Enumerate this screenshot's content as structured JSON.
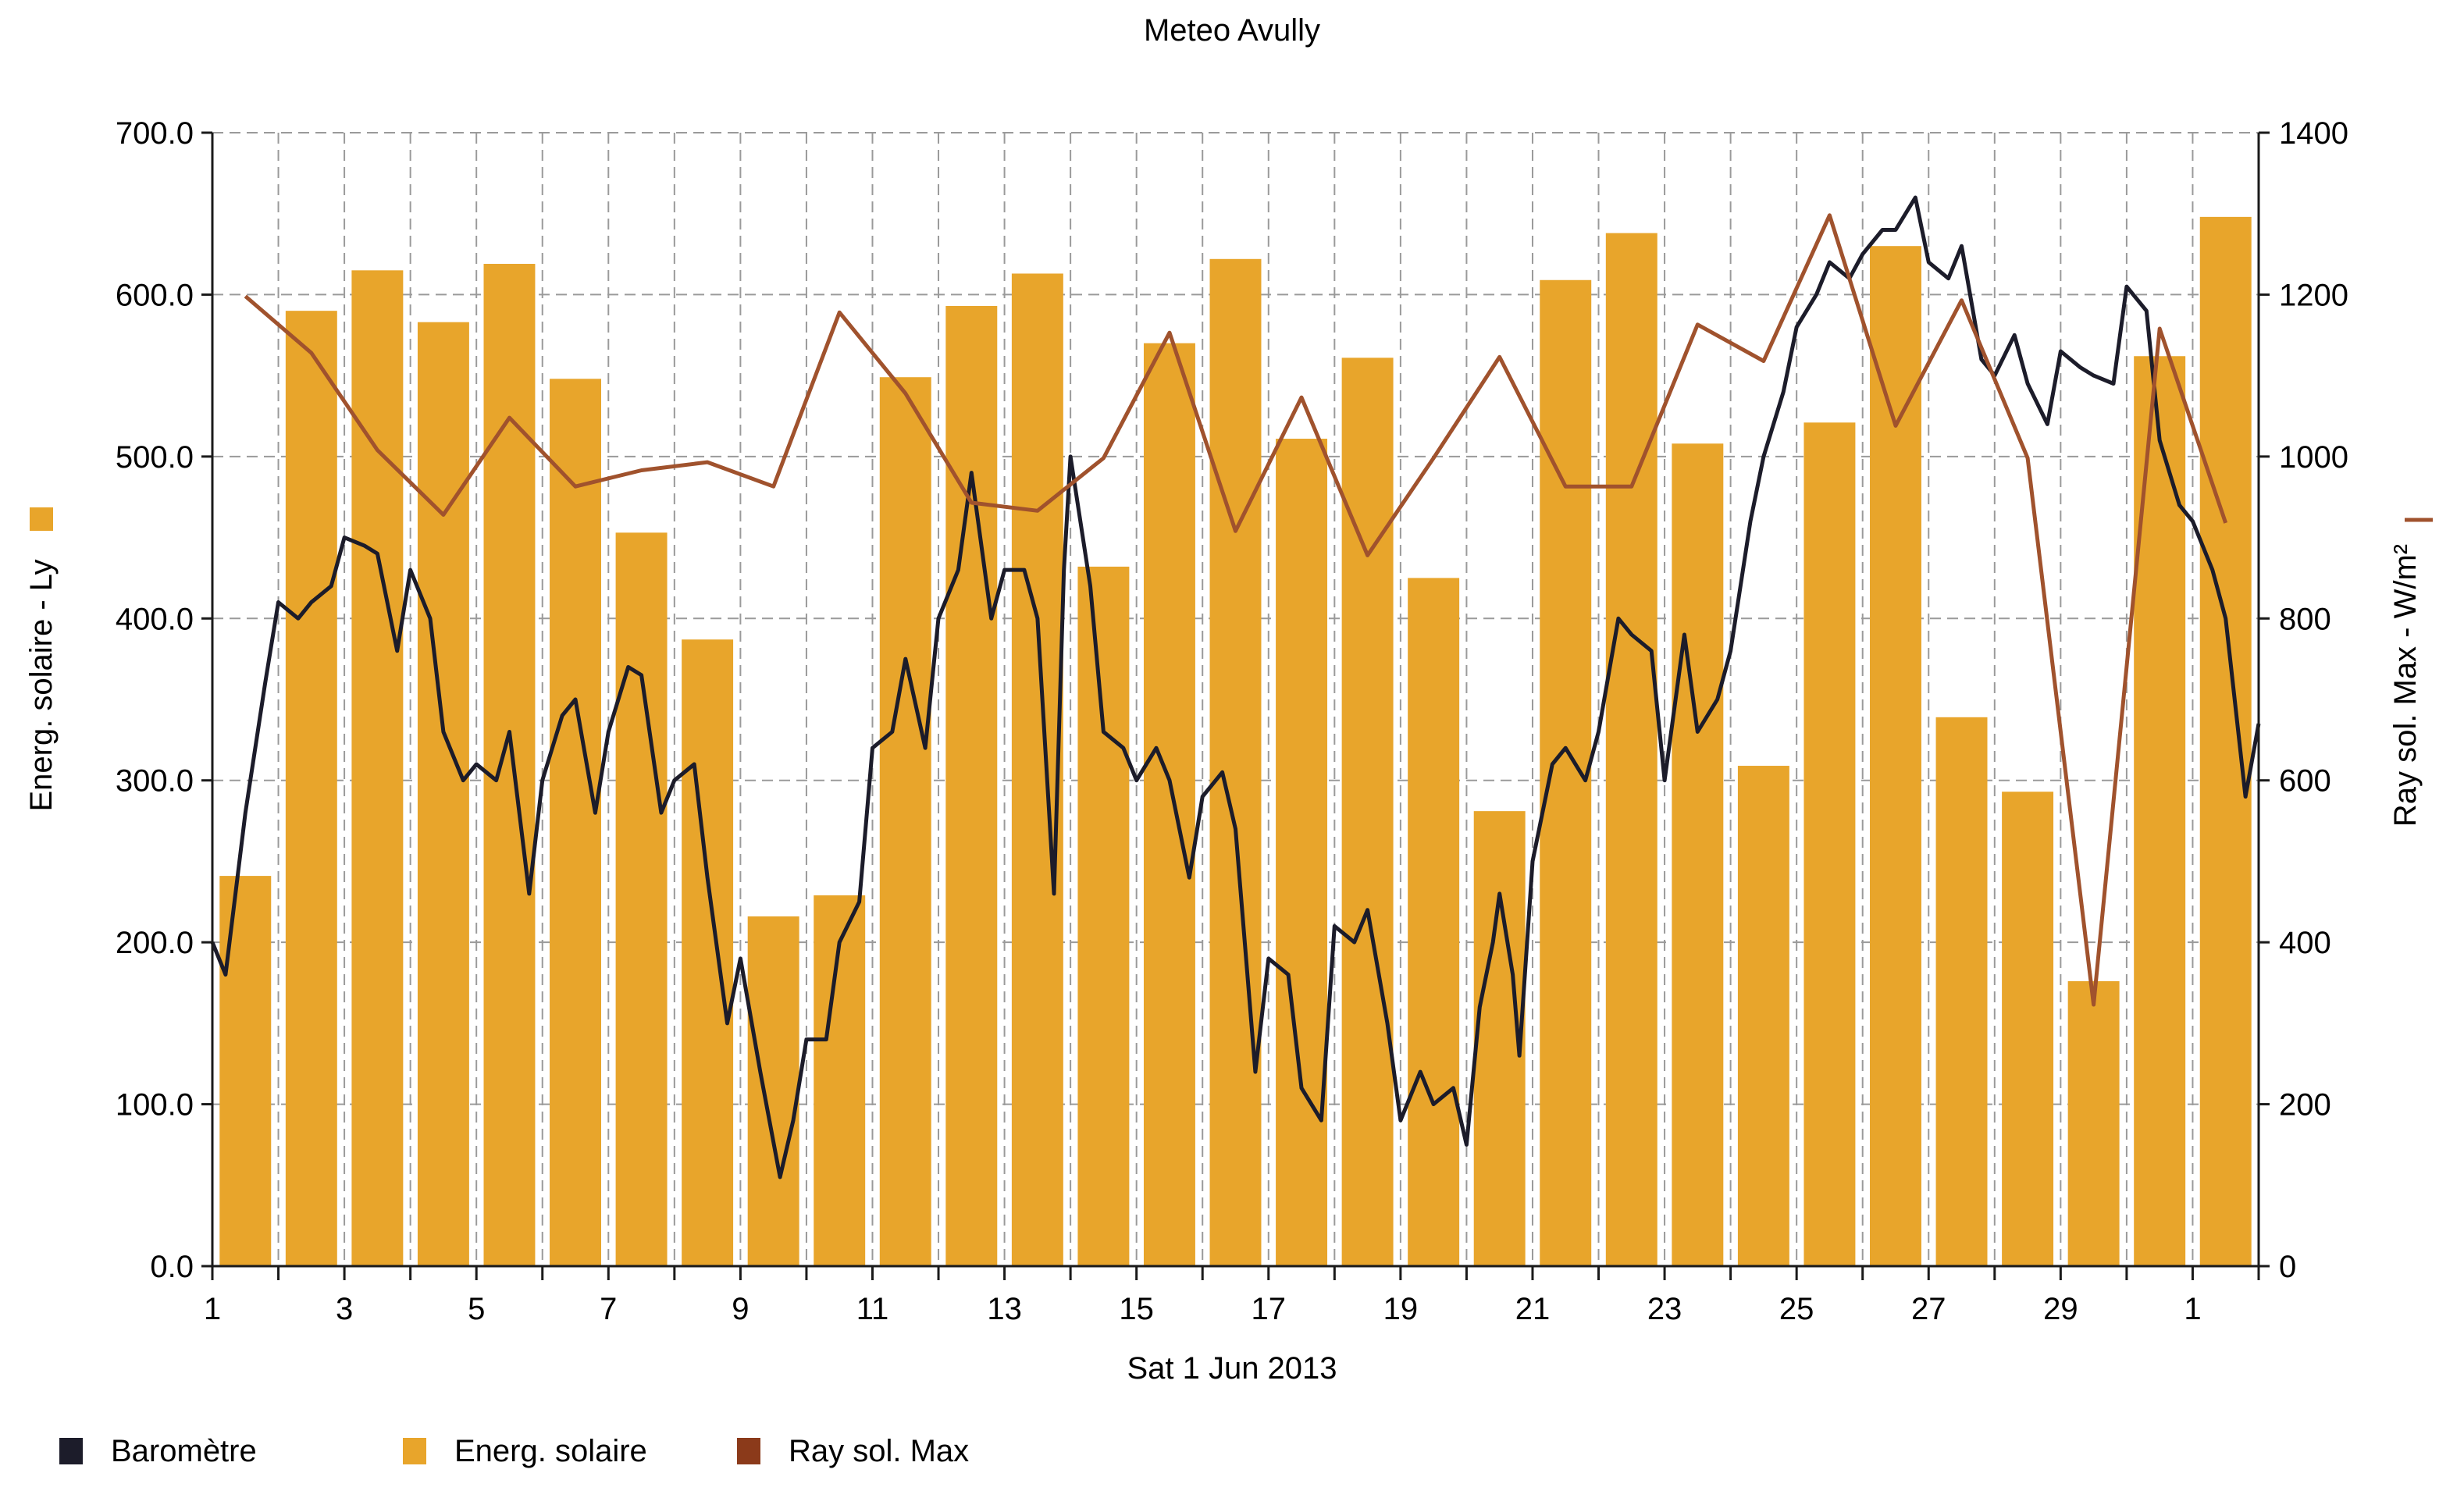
{
  "chart_data": {
    "type": "bar",
    "title": "Meteo  Avully",
    "xlabel": "Sat 1 Jun 2013",
    "ylabel_left": "Energ. solaire - Ly",
    "ylabel_right": "Ray sol. Max - W/m²",
    "ylim_left": [
      0,
      700
    ],
    "ylim_right": [
      0,
      1400
    ],
    "left_ticks": [
      "0.0",
      "100.0",
      "200.0",
      "300.0",
      "400.0",
      "500.0",
      "600.0",
      "700.0"
    ],
    "right_ticks": [
      "0",
      "200",
      "400",
      "600",
      "800",
      "1000",
      "1200",
      "1400"
    ],
    "x_tick_labels": [
      "1",
      "3",
      "5",
      "7",
      "9",
      "11",
      "13",
      "15",
      "17",
      "19",
      "21",
      "23",
      "25",
      "27",
      "29",
      "1"
    ],
    "grid": true,
    "legend_position": "bottom",
    "days": [
      "1",
      "2",
      "3",
      "4",
      "5",
      "6",
      "7",
      "8",
      "9",
      "10",
      "11",
      "12",
      "13",
      "14",
      "15",
      "16",
      "17",
      "18",
      "19",
      "20",
      "21",
      "22",
      "23",
      "24",
      "25",
      "26",
      "27",
      "28",
      "29",
      "30",
      "1"
    ],
    "series": [
      {
        "name": "Energ. solaire",
        "type": "bar",
        "axis": "left",
        "color": "#e8a52b",
        "values": [
          241,
          590,
          615,
          583,
          619,
          548,
          453,
          387,
          216,
          229,
          549,
          593,
          613,
          432,
          570,
          622,
          511,
          561,
          425,
          281,
          609,
          638,
          508,
          309,
          521,
          630,
          339,
          293,
          176,
          562,
          648
        ]
      },
      {
        "name": "Ray sol. Max",
        "type": "line",
        "axis": "right",
        "color": "#a0522d",
        "values": [
          1198,
          1128,
          1008,
          928,
          1048,
          963,
          983,
          993,
          963,
          1178,
          1078,
          943,
          933,
          998,
          1153,
          908,
          1073,
          878,
          998,
          1123,
          963,
          963,
          1163,
          1118,
          1298,
          1038,
          1193,
          998,
          323,
          1158,
          918
        ]
      },
      {
        "name": "Baromètre",
        "type": "line",
        "axis": "left",
        "color": "#1c1c2a",
        "x": [
          1.0,
          1.2,
          1.5,
          1.8,
          2.0,
          2.3,
          2.5,
          2.8,
          3.0,
          3.3,
          3.5,
          3.8,
          4.0,
          4.3,
          4.5,
          4.8,
          5.0,
          5.3,
          5.5,
          5.8,
          6.0,
          6.3,
          6.5,
          6.8,
          7.0,
          7.3,
          7.5,
          7.8,
          8.0,
          8.3,
          8.5,
          8.8,
          9.0,
          9.3,
          9.6,
          9.8,
          10.0,
          10.3,
          10.5,
          10.8,
          11.0,
          11.3,
          11.5,
          11.8,
          12.0,
          12.3,
          12.5,
          12.8,
          13.0,
          13.3,
          13.5,
          13.75,
          13.9,
          14.0,
          14.3,
          14.5,
          14.8,
          15.0,
          15.3,
          15.5,
          15.8,
          16.0,
          16.3,
          16.5,
          16.8,
          17.0,
          17.3,
          17.5,
          17.8,
          18.0,
          18.3,
          18.5,
          18.8,
          19.0,
          19.3,
          19.5,
          19.8,
          20.0,
          20.2,
          20.4,
          20.5,
          20.7,
          20.8,
          21.0,
          21.3,
          21.5,
          21.8,
          22.0,
          22.3,
          22.5,
          22.8,
          23.0,
          23.3,
          23.5,
          23.8,
          24.0,
          24.3,
          24.5,
          24.8,
          25.0,
          25.3,
          25.5,
          25.8,
          26.0,
          26.3,
          26.5,
          26.8,
          27.0,
          27.3,
          27.5,
          27.8,
          28.0,
          28.3,
          28.5,
          28.8,
          29.0,
          29.3,
          29.5,
          29.8,
          30.0,
          30.3,
          30.5,
          30.8,
          31.0,
          31.3,
          31.5,
          31.8,
          32.0
        ],
        "values": [
          200,
          180,
          280,
          360,
          410,
          400,
          410,
          420,
          450,
          445,
          440,
          380,
          430,
          400,
          330,
          300,
          310,
          300,
          330,
          230,
          300,
          340,
          350,
          280,
          330,
          370,
          365,
          280,
          300,
          310,
          240,
          150,
          190,
          120,
          55,
          90,
          140,
          140,
          200,
          225,
          320,
          330,
          375,
          320,
          400,
          430,
          490,
          400,
          430,
          430,
          400,
          230,
          430,
          500,
          420,
          330,
          320,
          300,
          320,
          300,
          240,
          290,
          305,
          270,
          120,
          190,
          180,
          110,
          90,
          210,
          200,
          220,
          150,
          90,
          120,
          100,
          110,
          75,
          160,
          200,
          230,
          180,
          130,
          250,
          310,
          320,
          300,
          330,
          400,
          390,
          380,
          300,
          390,
          330,
          350,
          380,
          460,
          500,
          540,
          580,
          600,
          620,
          610,
          625,
          640,
          640,
          660,
          620,
          610,
          630,
          560,
          550,
          575,
          545,
          520,
          565,
          555,
          550,
          545,
          605,
          590,
          510,
          470,
          460,
          430,
          400,
          290,
          335
        ]
      }
    ]
  }
}
